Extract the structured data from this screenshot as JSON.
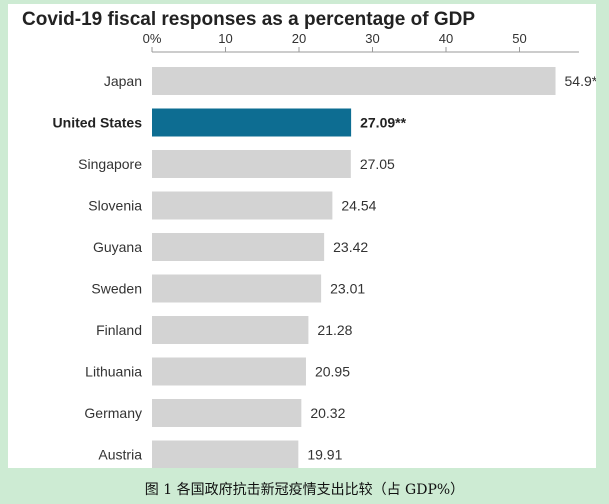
{
  "figure_caption": "图 1  各国政府抗击新冠疫情支出比较（占 GDP%）",
  "colors": {
    "bar": "#d3d3d3",
    "highlight": "#0d6d92",
    "axis": "#999999",
    "panel": "#ffffff",
    "frame": "#cdebd3"
  },
  "chart_data": {
    "type": "bar",
    "orientation": "horizontal",
    "title": "Covid-19 fiscal responses as a percentage of GDP",
    "xlabel": "",
    "ylabel": "",
    "xlim": [
      0,
      57
    ],
    "x_ticks": [
      "0%",
      "10",
      "20",
      "30",
      "40",
      "50"
    ],
    "x_tick_values": [
      0,
      10,
      20,
      30,
      40,
      50
    ],
    "grid": false,
    "legend": "none",
    "highlight": "United States",
    "categories": [
      "Japan",
      "United States",
      "Singapore",
      "Slovenia",
      "Guyana",
      "Sweden",
      "Finland",
      "Lithuania",
      "Germany",
      "Austria"
    ],
    "values": [
      54.9,
      27.09,
      27.05,
      24.54,
      23.42,
      23.01,
      21.28,
      20.95,
      20.32,
      19.91
    ],
    "value_labels": [
      "54.9*",
      "27.09**",
      "27.05",
      "24.54",
      "23.42",
      "23.01",
      "21.28",
      "20.95",
      "20.32",
      "19.91"
    ]
  }
}
